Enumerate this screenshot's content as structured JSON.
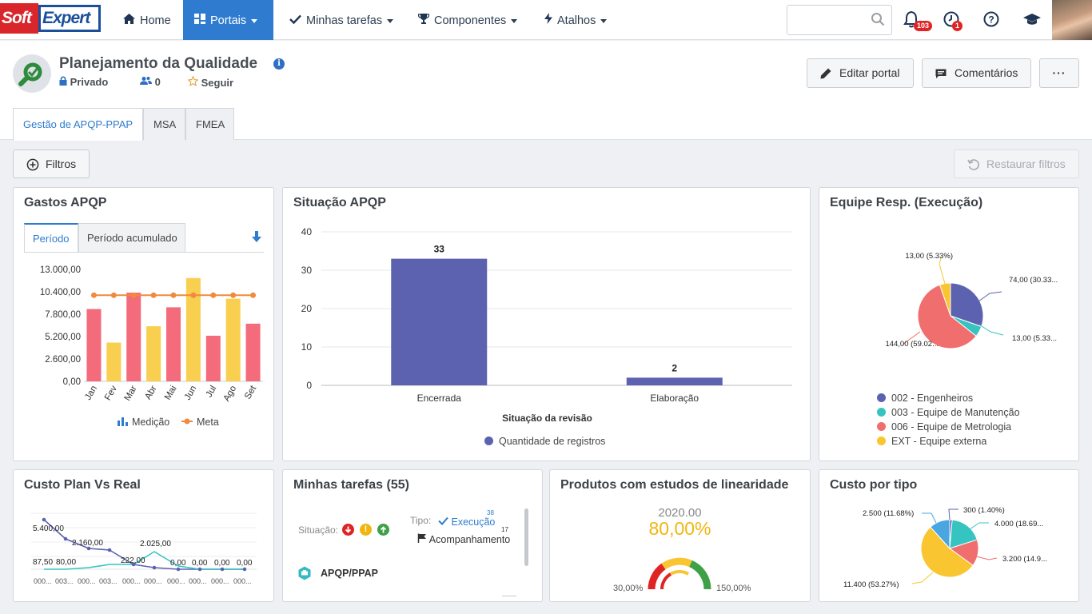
{
  "brand": {
    "logo_part1": "Soft",
    "logo_part2": "Expert"
  },
  "nav": {
    "home": "Home",
    "portais": "Portais",
    "tarefas": "Minhas tarefas",
    "componentes": "Componentes",
    "atalhos": "Atalhos",
    "search_placeholder": "",
    "notifications_count": "103",
    "tasks_badge": "1"
  },
  "portal": {
    "title": "Planejamento da Qualidade",
    "privacy": "Privado",
    "members": "0",
    "follow": "Seguir",
    "edit_button": "Editar portal",
    "comments_button": "Comentários",
    "more_button": "···"
  },
  "tabs": [
    "Gestão de APQP-PPAP",
    "MSA",
    "FMEA"
  ],
  "filters": {
    "filter_button": "Filtros",
    "restore_button": "Restaurar filtros"
  },
  "colors": {
    "accent": "#2e7bcf",
    "bar_red": "#f46b7b",
    "bar_yellow": "#f9cf50",
    "meta_line": "#f08a3c",
    "indigo": "#5c62b0",
    "teal": "#35c4c0",
    "salmon": "#f06e6e",
    "amber": "#f9c531"
  },
  "gastos": {
    "title": "Gastos APQP",
    "tab_periodo": "Período",
    "tab_acumulado": "Período acumulado",
    "legend_medicao": "Medição",
    "legend_meta": "Meta"
  },
  "situacao": {
    "title": "Situação APQP",
    "xlabel": "Situação da revisão",
    "legend": "Quantidade de registros"
  },
  "equipe": {
    "title": "Equipe Resp. (Execução)",
    "legend": [
      "002 - Engenheiros",
      "003 - Equipe de Manutenção",
      "006 - Equipe de Metrologia",
      "EXT - Equipe externa"
    ],
    "labels": [
      "74,00 (30.33...",
      "13,00 (5.33...",
      "144,00 (59.02...",
      "13,00 (5.33%)"
    ]
  },
  "custo_plan": {
    "title": "Custo Plan Vs Real",
    "labels": [
      "5.400,00",
      "2.160,00",
      "87,50",
      "80,00",
      "222,00",
      "2.025,00",
      "0,00",
      "0,00",
      "0,00",
      "0,00"
    ],
    "xticks": [
      "000...",
      "003...",
      "000...",
      "003...",
      "000...",
      "000...",
      "000...",
      "000...",
      "000...",
      "000..."
    ]
  },
  "tarefas": {
    "title": "Minhas tarefas (55)",
    "situacao_label": "Situação:",
    "tipo_label": "Tipo:",
    "execucao": "Execução",
    "execucao_count": "38",
    "acompanhamento": "Acompanhamento",
    "acompanhamento_count": "17",
    "item": "APQP/PPAP"
  },
  "linearidade": {
    "title": "Produtos com estudos de linearidade",
    "target": "2020.00",
    "value": "80,00%",
    "min": "30,00%",
    "max": "150,00%",
    "gauge_fraction": 0.5
  },
  "custo_tipo": {
    "title": "Custo por tipo",
    "labels": [
      "2.500 (11.68%)",
      "300 (1.40%)",
      "4.000 (18.69...",
      "3.200 (14.9...",
      "11.400 (53.27%)"
    ]
  },
  "chart_data": [
    {
      "type": "bar",
      "title": "Gastos APQP",
      "categories": [
        "Jan",
        "Fev",
        "Mar",
        "Abr",
        "Mai",
        "Jun",
        "Jul",
        "Ago",
        "Set"
      ],
      "series": [
        {
          "name": "Medição",
          "values": [
            8400,
            4500,
            10300,
            6400,
            8600,
            12000,
            5300,
            9600,
            6700
          ]
        },
        {
          "name": "Meta",
          "type": "line",
          "values": [
            10000,
            10000,
            10000,
            10000,
            10000,
            10000,
            10000,
            10000,
            10000
          ]
        }
      ],
      "yticks": [
        "13.000,00",
        "10.400,00",
        "7.800,00",
        "5.200,00",
        "2.600,00",
        "0,00"
      ],
      "ylim": [
        0,
        13000
      ]
    },
    {
      "type": "bar",
      "title": "Situação APQP",
      "categories": [
        "Encerrada",
        "Elaboração"
      ],
      "values": [
        33,
        2
      ],
      "xlabel": "Situação da revisão",
      "yticks": [
        "40",
        "30",
        "20",
        "10",
        "0"
      ],
      "ylim": [
        0,
        40
      ],
      "series_name": "Quantidade de registros"
    },
    {
      "type": "pie",
      "title": "Equipe Resp. (Execução)",
      "labels": [
        "002 - Engenheiros",
        "003 - Equipe de Manutenção",
        "006 - Equipe de Metrologia",
        "EXT - Equipe externa"
      ],
      "values": [
        74,
        13,
        144,
        13
      ]
    },
    {
      "type": "pie",
      "title": "Custo por tipo",
      "values": [
        300,
        4000,
        3200,
        11400,
        2500
      ]
    }
  ]
}
